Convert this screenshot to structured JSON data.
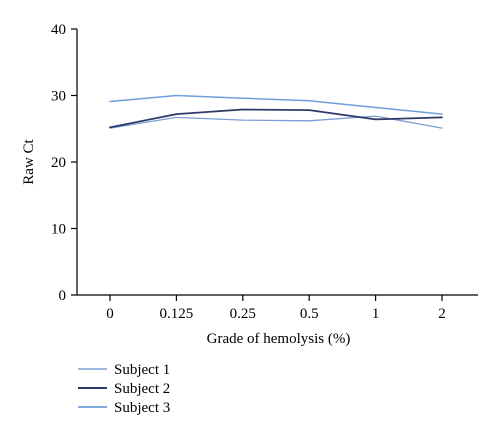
{
  "chart_data": {
    "type": "line",
    "categories": [
      "0",
      "0.125",
      "0.25",
      "0.5",
      "1",
      "2"
    ],
    "xlabel": "Grade of hemolysis (%)",
    "ylabel": "Raw Ct",
    "ylim": [
      0,
      40
    ],
    "yticks": [
      0,
      10,
      20,
      30,
      40
    ],
    "grid": false,
    "legend_position": "bottom-left",
    "series": [
      {
        "name": "Subject 1",
        "color": "#7b9fd4",
        "stroke_width": 1.3,
        "values": [
          25.1,
          26.7,
          26.3,
          26.2,
          26.9,
          25.1
        ]
      },
      {
        "name": "Subject 2",
        "color": "#2f3a6b",
        "stroke_width": 1.8,
        "values": [
          25.2,
          27.2,
          27.9,
          27.8,
          26.4,
          26.7
        ]
      },
      {
        "name": "Subject 3",
        "color": "#6f9fdc",
        "stroke_width": 1.5,
        "values": [
          29.1,
          30.0,
          29.6,
          29.2,
          28.2,
          27.2
        ]
      }
    ]
  }
}
